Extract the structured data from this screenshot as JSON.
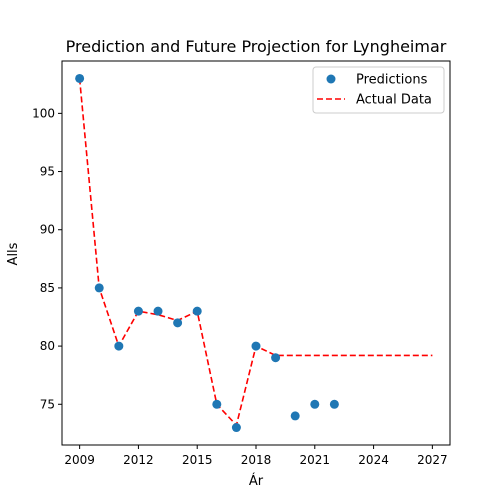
{
  "chart_data": {
    "type": "scatter",
    "title": "Prediction and Future Projection for Lyngheimar",
    "xlabel": "Ár",
    "ylabel": "Alls",
    "xlim": [
      2008.1,
      2027.9
    ],
    "ylim": [
      71.5,
      104.5
    ],
    "xticks": [
      2009,
      2012,
      2015,
      2018,
      2021,
      2024,
      2027
    ],
    "yticks": [
      75,
      80,
      85,
      90,
      95,
      100
    ],
    "grid": false,
    "legend_position": "top-right",
    "series": [
      {
        "name": "Predictions",
        "kind": "scatter",
        "color": "#1f77b4",
        "x": [
          2009,
          2010,
          2011,
          2012,
          2013,
          2014,
          2015,
          2016,
          2017,
          2018,
          2019,
          2020,
          2021,
          2022
        ],
        "y": [
          103,
          85,
          80,
          83,
          83,
          82,
          83,
          75,
          73,
          80,
          79,
          74,
          75,
          75
        ]
      },
      {
        "name": "Actual Data",
        "kind": "dashed-line",
        "color": "#ff0000",
        "x": [
          2009,
          2010,
          2011,
          2012,
          2013,
          2014,
          2015,
          2016,
          2017,
          2018,
          2019,
          2020,
          2021,
          2022,
          2023,
          2024,
          2025,
          2026,
          2027
        ],
        "y": [
          103,
          85,
          80,
          83,
          82.7,
          82.2,
          83,
          75,
          73.2,
          80,
          79.2,
          79.2,
          79.2,
          79.2,
          79.2,
          79.2,
          79.2,
          79.2,
          79.2
        ]
      }
    ]
  }
}
